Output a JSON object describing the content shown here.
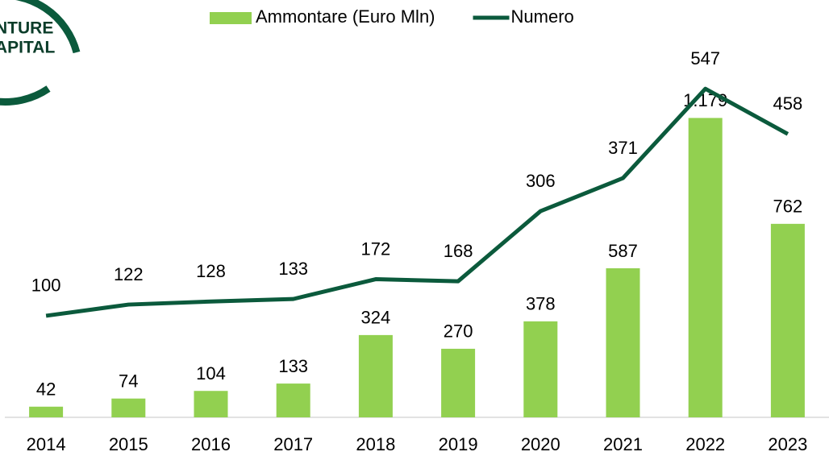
{
  "logo_text": [
    "NTURE",
    "APITAL"
  ],
  "chart_data": {
    "type": "bar_line",
    "categories": [
      "2014",
      "2015",
      "2016",
      "2017",
      "2018",
      "2019",
      "2020",
      "2021",
      "2022",
      "2023"
    ],
    "series": [
      {
        "name": "Ammontare (Euro Mln)",
        "type": "bar",
        "color": "#92d050",
        "values": [
          42,
          74,
          104,
          133,
          324,
          270,
          378,
          587,
          1179,
          762
        ],
        "value_labels": [
          "42",
          "74",
          "104",
          "133",
          "324",
          "270",
          "378",
          "587",
          "1.179",
          "762"
        ]
      },
      {
        "name": "Numero",
        "type": "line",
        "axis": "y2",
        "color": "#0b5a3c",
        "values": [
          100,
          122,
          128,
          133,
          172,
          168,
          306,
          371,
          547,
          458
        ]
      }
    ],
    "ylim": [
      0,
      1450
    ],
    "y2lim": [
      -100,
      625
    ]
  }
}
